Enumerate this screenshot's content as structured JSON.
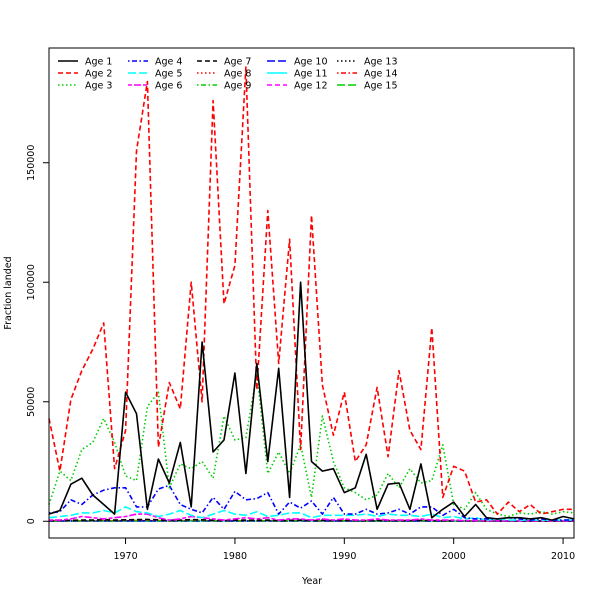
{
  "chart_data": {
    "type": "line",
    "title": "",
    "xlabel": "Year",
    "ylabel": "Fraction landed",
    "xlim": [
      1963,
      2011
    ],
    "ylim": [
      -7000,
      198000
    ],
    "x_ticks": [
      1970,
      1980,
      1990,
      2000,
      2010
    ],
    "y_ticks": [
      0,
      50000,
      100000,
      150000
    ],
    "x_tick_labels": [
      "1970",
      "1980",
      "1990",
      "2000",
      "2010"
    ],
    "y_tick_labels": [
      "0",
      "50000",
      "100000",
      "150000"
    ],
    "grid": false,
    "legend_position": "top-left",
    "years": [
      1963,
      1964,
      1965,
      1966,
      1967,
      1968,
      1969,
      1970,
      1971,
      1972,
      1973,
      1974,
      1975,
      1976,
      1977,
      1978,
      1979,
      1980,
      1981,
      1982,
      1983,
      1984,
      1985,
      1986,
      1987,
      1988,
      1989,
      1990,
      1991,
      1992,
      1993,
      1994,
      1995,
      1996,
      1997,
      1998,
      1999,
      2000,
      2001,
      2002,
      2003,
      2004,
      2005,
      2006,
      2007,
      2008,
      2009,
      2010,
      2011
    ],
    "series": [
      {
        "name": "Age 1",
        "color": "#000000",
        "dash": "solid",
        "values": [
          3000,
          4500,
          15500,
          18000,
          11000,
          7000,
          3000,
          54000,
          45000,
          5000,
          26000,
          16000,
          33000,
          6000,
          75000,
          29000,
          34000,
          62000,
          20000,
          66000,
          25000,
          64000,
          10000,
          100000,
          25000,
          21000,
          22000,
          12000,
          14000,
          28000,
          5000,
          15500,
          16000,
          5000,
          24000,
          1500,
          5000,
          8000,
          2000,
          7000,
          1500,
          1000,
          1500,
          1500,
          1000,
          1500,
          500,
          2000,
          1000
        ]
      },
      {
        "name": "Age 2",
        "color": "#ff0000",
        "dash": "dashed",
        "values": [
          43000,
          21000,
          51000,
          63000,
          72000,
          83000,
          22000,
          38000,
          155000,
          184000,
          31000,
          58000,
          47000,
          100000,
          50000,
          176000,
          91000,
          107000,
          190000,
          55000,
          130000,
          66000,
          118000,
          30000,
          128000,
          57000,
          36000,
          54000,
          25000,
          32000,
          56000,
          27000,
          63000,
          38000,
          30000,
          81000,
          10000,
          23000,
          21000,
          8000,
          9000,
          3000,
          8000,
          4000,
          7000,
          3000,
          4000,
          5000,
          5000
        ]
      },
      {
        "name": "Age 3",
        "color": "#00cd00",
        "dash": "dotted",
        "values": [
          7000,
          21000,
          17000,
          30000,
          33000,
          43000,
          33000,
          19000,
          17000,
          48000,
          54000,
          14000,
          24000,
          22000,
          25000,
          18000,
          44000,
          34000,
          35000,
          62000,
          20000,
          29000,
          20000,
          32000,
          10000,
          44000,
          25000,
          14000,
          12000,
          9000,
          11000,
          20000,
          14000,
          22000,
          16000,
          17000,
          32000,
          7000,
          5000,
          12000,
          5000,
          3000,
          2000,
          3500,
          3000,
          4000,
          3000,
          4000,
          3500
        ]
      },
      {
        "name": "Age 4",
        "color": "#0000ff",
        "dash": "dotdash",
        "values": [
          3500,
          4000,
          9000,
          7000,
          11000,
          13000,
          14000,
          14000,
          6000,
          6000,
          13500,
          15000,
          7000,
          5000,
          3500,
          10000,
          5000,
          12500,
          9000,
          9500,
          12000,
          3000,
          8000,
          5500,
          8500,
          3000,
          10000,
          3000,
          3000,
          5000,
          3000,
          3500,
          5000,
          3000,
          6000,
          6000,
          2500,
          5000,
          1500,
          1000,
          1000,
          1000,
          1500,
          1000,
          500,
          1000,
          500,
          500,
          500
        ]
      },
      {
        "name": "Age 5",
        "color": "#00ffff",
        "dash": "longdash",
        "values": [
          1500,
          2000,
          2500,
          3500,
          3500,
          4500,
          3500,
          6000,
          4000,
          3500,
          2000,
          3000,
          4500,
          2500,
          1500,
          3000,
          4500,
          3000,
          2500,
          4000,
          2000,
          2500,
          3500,
          3500,
          1500,
          2500,
          2500,
          2500,
          2500,
          3000,
          2000,
          3000,
          2500,
          2500,
          2000,
          3000,
          1500,
          2000,
          1000,
          1500,
          500,
          1000,
          500,
          500,
          500,
          500,
          500,
          500,
          500
        ]
      },
      {
        "name": "Age 6",
        "color": "#ff00ff",
        "dash": "twodash",
        "values": [
          500,
          500,
          1000,
          2000,
          1500,
          1000,
          1500,
          2000,
          3000,
          3000,
          1500,
          500,
          1000,
          2000,
          1500,
          1000,
          500,
          1000,
          1500,
          1000,
          1500,
          500,
          1000,
          1000,
          500,
          1000,
          500,
          1000,
          500,
          500,
          1000,
          500,
          500,
          500,
          1000,
          500,
          500,
          500,
          300,
          300,
          200,
          200,
          200,
          200,
          200,
          200,
          200,
          200,
          200
        ]
      },
      {
        "name": "Age 7",
        "color": "#000000",
        "dash": "dashed",
        "values": [
          300,
          300,
          400,
          500,
          500,
          600,
          500,
          600,
          700,
          800,
          600,
          400,
          500,
          700,
          600,
          400,
          300,
          400,
          500,
          400,
          500,
          300,
          400,
          500,
          300,
          400,
          300,
          400,
          300,
          300,
          400,
          300,
          300,
          300,
          400,
          300,
          200,
          300,
          200,
          200,
          100,
          100,
          100,
          100,
          100,
          100,
          100,
          100,
          100
        ]
      },
      {
        "name": "Age 8",
        "color": "#ff0000",
        "dash": "dotted",
        "values": [
          200,
          200,
          300,
          300,
          300,
          400,
          300,
          400,
          500,
          500,
          400,
          300,
          300,
          500,
          400,
          300,
          200,
          300,
          300,
          300,
          300,
          200,
          300,
          300,
          200,
          300,
          200,
          300,
          200,
          200,
          300,
          200,
          200,
          200,
          300,
          200,
          150,
          200,
          150,
          150,
          80,
          80,
          80,
          80,
          80,
          80,
          80,
          80,
          80
        ]
      },
      {
        "name": "Age 9",
        "color": "#00cd00",
        "dash": "dotdash",
        "values": [
          150,
          150,
          200,
          200,
          200,
          300,
          200,
          300,
          300,
          300,
          300,
          200,
          200,
          300,
          300,
          200,
          150,
          200,
          200,
          200,
          200,
          150,
          200,
          200,
          150,
          200,
          150,
          200,
          150,
          150,
          200,
          150,
          150,
          150,
          200,
          150,
          100,
          150,
          100,
          100,
          60,
          60,
          60,
          60,
          60,
          60,
          60,
          60,
          60
        ]
      },
      {
        "name": "Age 10",
        "color": "#0000ff",
        "dash": "longdash",
        "values": [
          100,
          100,
          150,
          150,
          150,
          200,
          150,
          200,
          200,
          200,
          200,
          150,
          150,
          200,
          200,
          150,
          100,
          150,
          150,
          150,
          150,
          100,
          150,
          150,
          100,
          150,
          100,
          150,
          100,
          100,
          150,
          100,
          100,
          100,
          150,
          100,
          80,
          100,
          80,
          80,
          50,
          50,
          50,
          50,
          50,
          50,
          50,
          50,
          50
        ]
      },
      {
        "name": "Age 11",
        "color": "#00ffff",
        "dash": "solid",
        "values": [
          80,
          80,
          100,
          100,
          100,
          150,
          100,
          150,
          150,
          150,
          150,
          100,
          100,
          150,
          150,
          100,
          80,
          100,
          100,
          100,
          100,
          80,
          100,
          100,
          80,
          100,
          80,
          100,
          80,
          80,
          100,
          80,
          80,
          80,
          100,
          80,
          60,
          80,
          60,
          60,
          40,
          40,
          40,
          40,
          40,
          40,
          40,
          40,
          40
        ]
      },
      {
        "name": "Age 12",
        "color": "#ff00ff",
        "dash": "dashed",
        "values": [
          60,
          60,
          80,
          80,
          80,
          100,
          80,
          100,
          100,
          100,
          100,
          80,
          80,
          100,
          100,
          80,
          60,
          80,
          80,
          80,
          80,
          60,
          80,
          80,
          60,
          80,
          60,
          80,
          60,
          60,
          80,
          60,
          60,
          60,
          80,
          60,
          40,
          60,
          40,
          40,
          30,
          30,
          30,
          30,
          30,
          30,
          30,
          30,
          30
        ]
      },
      {
        "name": "Age 13",
        "color": "#000000",
        "dash": "dotted",
        "values": [
          40,
          40,
          60,
          60,
          60,
          80,
          60,
          80,
          80,
          80,
          80,
          60,
          60,
          80,
          80,
          60,
          40,
          60,
          60,
          60,
          60,
          40,
          60,
          60,
          40,
          60,
          40,
          60,
          40,
          40,
          60,
          40,
          40,
          40,
          60,
          40,
          30,
          40,
          30,
          30,
          20,
          20,
          20,
          20,
          20,
          20,
          20,
          20,
          20
        ]
      },
      {
        "name": "Age 14",
        "color": "#ff0000",
        "dash": "dotdash",
        "values": [
          30,
          30,
          40,
          40,
          40,
          60,
          40,
          60,
          60,
          60,
          60,
          40,
          40,
          60,
          60,
          40,
          30,
          40,
          40,
          40,
          40,
          30,
          40,
          40,
          30,
          40,
          30,
          40,
          30,
          30,
          40,
          30,
          30,
          30,
          40,
          30,
          20,
          30,
          20,
          20,
          15,
          15,
          15,
          15,
          15,
          15,
          15,
          15,
          15
        ]
      },
      {
        "name": "Age 15",
        "color": "#00cd00",
        "dash": "longdash",
        "values": [
          20,
          20,
          30,
          30,
          30,
          40,
          30,
          40,
          40,
          40,
          40,
          30,
          30,
          40,
          40,
          30,
          20,
          30,
          30,
          30,
          30,
          20,
          30,
          30,
          20,
          30,
          20,
          30,
          20,
          20,
          30,
          20,
          20,
          20,
          30,
          20,
          15,
          20,
          15,
          15,
          10,
          10,
          10,
          10,
          10,
          10,
          10,
          10,
          10
        ]
      }
    ]
  }
}
